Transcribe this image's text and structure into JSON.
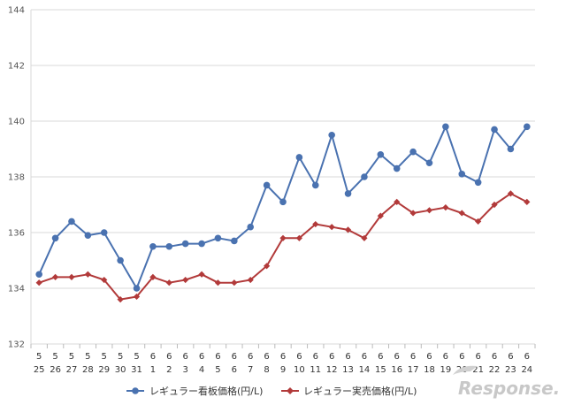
{
  "chart_data": {
    "type": "line",
    "title": "",
    "xlabel": "",
    "ylabel": "",
    "ylim": [
      132,
      144
    ],
    "yticks": [
      132,
      134,
      136,
      138,
      140,
      142,
      144
    ],
    "grid": true,
    "legend_position": "bottom-center",
    "categories": [
      {
        "month": "5",
        "day": "25"
      },
      {
        "month": "5",
        "day": "26"
      },
      {
        "month": "5",
        "day": "27"
      },
      {
        "month": "5",
        "day": "28"
      },
      {
        "month": "5",
        "day": "29"
      },
      {
        "month": "5",
        "day": "30"
      },
      {
        "month": "5",
        "day": "31"
      },
      {
        "month": "6",
        "day": "1"
      },
      {
        "month": "6",
        "day": "2"
      },
      {
        "month": "6",
        "day": "3"
      },
      {
        "month": "6",
        "day": "4"
      },
      {
        "month": "6",
        "day": "5"
      },
      {
        "month": "6",
        "day": "6"
      },
      {
        "month": "6",
        "day": "7"
      },
      {
        "month": "6",
        "day": "8"
      },
      {
        "month": "6",
        "day": "9"
      },
      {
        "month": "6",
        "day": "10"
      },
      {
        "month": "6",
        "day": "11"
      },
      {
        "month": "6",
        "day": "12"
      },
      {
        "month": "6",
        "day": "13"
      },
      {
        "month": "6",
        "day": "14"
      },
      {
        "month": "6",
        "day": "15"
      },
      {
        "month": "6",
        "day": "16"
      },
      {
        "month": "6",
        "day": "17"
      },
      {
        "month": "6",
        "day": "18"
      },
      {
        "month": "6",
        "day": "19"
      },
      {
        "month": "6",
        "day": "20"
      },
      {
        "month": "6",
        "day": "21"
      },
      {
        "month": "6",
        "day": "22"
      },
      {
        "month": "6",
        "day": "23"
      },
      {
        "month": "6",
        "day": "24"
      }
    ],
    "series": [
      {
        "name": "レギュラー看板価格(円/L)",
        "color": "#4a72b0",
        "marker": "circle",
        "values": [
          134.5,
          135.8,
          136.4,
          135.9,
          136.0,
          135.0,
          134.0,
          135.5,
          135.5,
          135.6,
          135.6,
          135.8,
          135.7,
          136.2,
          137.7,
          137.1,
          138.7,
          137.7,
          139.5,
          137.4,
          138.0,
          138.8,
          138.3,
          138.9,
          138.5,
          139.8,
          138.1,
          137.8,
          139.7,
          139.0,
          139.8
        ]
      },
      {
        "name": "レギュラー実売価格(円/L)",
        "color": "#b23a3a",
        "marker": "diamond",
        "values": [
          134.2,
          134.4,
          134.4,
          134.5,
          134.3,
          133.6,
          133.7,
          134.4,
          134.2,
          134.3,
          134.5,
          134.2,
          134.2,
          134.3,
          134.8,
          135.8,
          135.8,
          136.3,
          136.2,
          136.1,
          135.8,
          136.6,
          137.1,
          136.7,
          136.8,
          136.9,
          136.7,
          136.4,
          137.0,
          137.4,
          137.1
        ]
      }
    ]
  },
  "watermark": {
    "text": "Response.",
    "color": "#c8c8c8"
  }
}
